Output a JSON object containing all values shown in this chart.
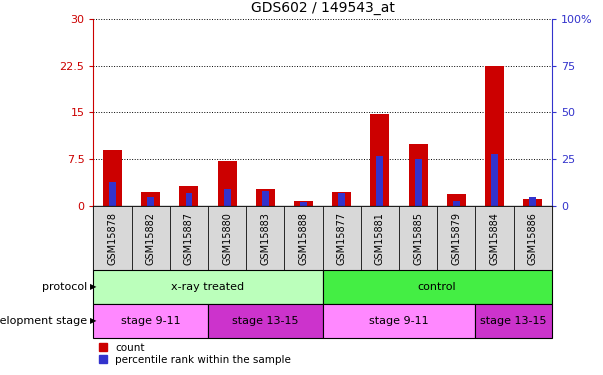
{
  "title": "GDS602 / 149543_at",
  "samples": [
    "GSM15878",
    "GSM15882",
    "GSM15887",
    "GSM15880",
    "GSM15883",
    "GSM15888",
    "GSM15877",
    "GSM15881",
    "GSM15885",
    "GSM15879",
    "GSM15884",
    "GSM15886"
  ],
  "counts": [
    9.0,
    2.2,
    3.2,
    7.2,
    2.8,
    0.8,
    2.3,
    14.7,
    10.0,
    2.0,
    22.5,
    1.2
  ],
  "percentiles": [
    13,
    5,
    7,
    9,
    8,
    2,
    7,
    27,
    25,
    3,
    28,
    5
  ],
  "left_ylim": [
    0,
    30
  ],
  "right_ylim": [
    0,
    100
  ],
  "left_yticks": [
    0,
    7.5,
    15,
    22.5,
    30
  ],
  "right_yticks": [
    0,
    25,
    50,
    75,
    100
  ],
  "left_ytick_labels": [
    "0",
    "7.5",
    "15",
    "22.5",
    "30"
  ],
  "right_ytick_labels": [
    "0",
    "25",
    "50",
    "75",
    "100%"
  ],
  "bar_color_count": "#cc0000",
  "bar_color_pct": "#3333cc",
  "protocol_colors": {
    "x-ray treated": "#bbffbb",
    "control": "#44ee44"
  },
  "stage_colors": {
    "stage 9-11": "#ff88ff",
    "stage 13-15": "#cc33cc"
  },
  "tick_label_color_left": "#cc0000",
  "tick_label_color_right": "#3333cc",
  "sample_box_color": "#d8d8d8",
  "protocol_segments": [
    {
      "label": "x-ray treated",
      "start": 0,
      "end": 6,
      "color": "#bbffbb"
    },
    {
      "label": "control",
      "start": 6,
      "end": 12,
      "color": "#44ee44"
    }
  ],
  "stage_segments": [
    {
      "label": "stage 9-11",
      "start": 0,
      "end": 3,
      "color": "#ff88ff"
    },
    {
      "label": "stage 13-15",
      "start": 3,
      "end": 6,
      "color": "#cc33cc"
    },
    {
      "label": "stage 9-11",
      "start": 6,
      "end": 10,
      "color": "#ff88ff"
    },
    {
      "label": "stage 13-15",
      "start": 10,
      "end": 12,
      "color": "#cc33cc"
    }
  ]
}
